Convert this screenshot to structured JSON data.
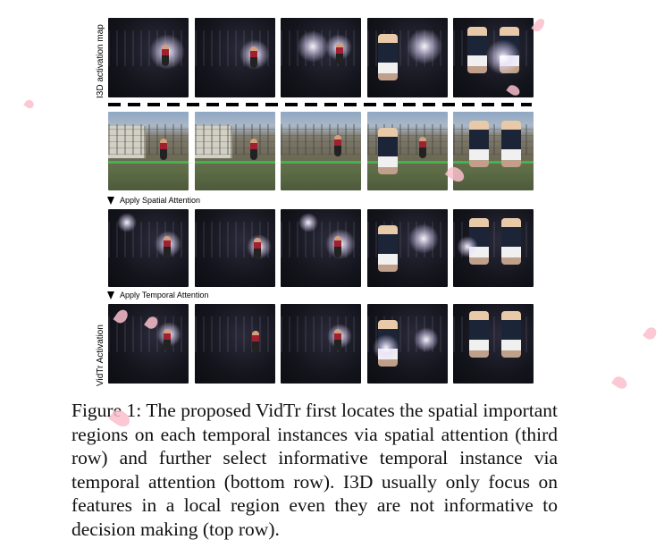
{
  "figure": {
    "row_labels": {
      "top": "I3D activation map",
      "bottom": "VidTr  Activation"
    },
    "step_labels": {
      "spatial": "Apply Spatial Attention",
      "temporal": "Apply Temporal Attention"
    },
    "caption": {
      "prefix": "Figure 1:",
      "text": "The proposed VidTr first locates the spatial important regions on each temporal instances via spatial attention (third row) and further select informative temporal instance via temporal attention (bottom row). I3D usually only focus on features in a local region even they are not informative to decision making (top row)."
    },
    "rows": [
      {
        "kind": "I3D activation",
        "frames": 5
      },
      {
        "kind": "original",
        "frames": 5
      },
      {
        "kind": "spatial attention",
        "frames": 5
      },
      {
        "kind": "temporal attention",
        "frames": 5
      }
    ],
    "colors": {
      "petal": "#fabecd",
      "track": "#3fbf4a",
      "activation_bg": "#14141c"
    }
  }
}
